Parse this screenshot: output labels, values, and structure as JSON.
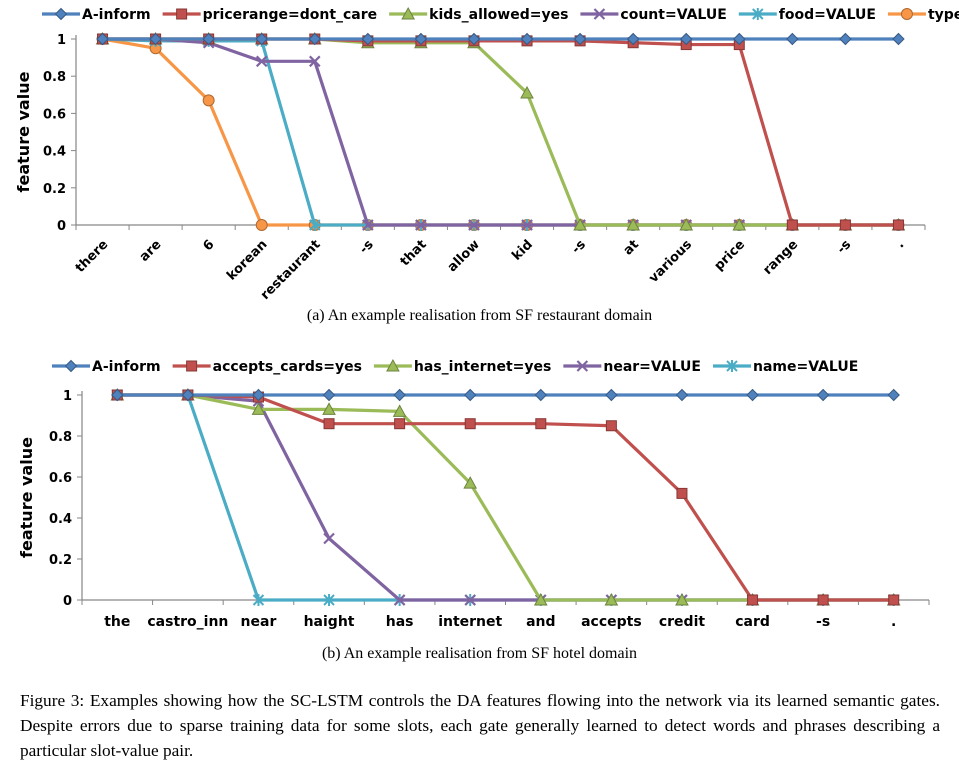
{
  "chart_data": [
    {
      "type": "line",
      "ylabel": "feature value",
      "xlabel": "",
      "ylim": [
        0,
        1
      ],
      "yticks": [
        "0",
        "0.2",
        "0.4",
        "0.6",
        "0.8",
        "1"
      ],
      "categories": [
        "there",
        "are",
        "6",
        "korean",
        "restaurant",
        "-s",
        "that",
        "allow",
        "kid",
        "-s",
        "at",
        "various",
        "price",
        "range",
        "-s",
        "."
      ],
      "legend_position": "top",
      "x_tick_rotation": "rotated",
      "series": [
        {
          "name": "A-inform",
          "color": "#4f81bd",
          "marker": "diamond",
          "values": [
            1,
            1,
            1,
            1,
            1,
            1,
            1,
            1,
            1,
            1,
            1,
            1,
            1,
            1,
            1,
            1
          ]
        },
        {
          "name": "pricerange=dont_care",
          "color": "#c0504d",
          "marker": "square",
          "values": [
            1,
            1,
            1,
            1,
            1,
            0.99,
            0.99,
            0.99,
            0.99,
            0.99,
            0.98,
            0.97,
            0.97,
            0,
            0,
            0
          ]
        },
        {
          "name": "kids_allowed=yes",
          "color": "#9bbb59",
          "marker": "triangle",
          "values": [
            1,
            1,
            1,
            1,
            1,
            0.98,
            0.98,
            0.98,
            0.71,
            0,
            0,
            0,
            0,
            0,
            0,
            0
          ]
        },
        {
          "name": "count=VALUE",
          "color": "#8064a2",
          "marker": "x",
          "values": [
            1,
            1,
            0.98,
            0.88,
            0.88,
            0,
            0,
            0,
            0,
            0,
            0,
            0,
            0,
            0,
            0,
            0
          ]
        },
        {
          "name": "food=VALUE",
          "color": "#4bacc6",
          "marker": "star",
          "values": [
            1,
            0.99,
            0.99,
            0.99,
            0,
            0,
            0,
            0,
            0,
            0,
            0,
            0,
            0,
            0,
            0,
            0
          ]
        },
        {
          "name": "type=VALUE",
          "color": "#f79646",
          "marker": "circle",
          "values": [
            1,
            0.95,
            0.67,
            0,
            0,
            0,
            0,
            0,
            0,
            0,
            0,
            0,
            0,
            0,
            0,
            0
          ]
        }
      ],
      "caption": "(a) An example realisation from SF restaurant domain"
    },
    {
      "type": "line",
      "ylabel": "feature value",
      "xlabel": "",
      "ylim": [
        0,
        1
      ],
      "yticks": [
        "0",
        "0.2",
        "0.4",
        "0.6",
        "0.8",
        "1"
      ],
      "categories": [
        "the",
        "castro_inn",
        "near",
        "haight",
        "has",
        "internet",
        "and",
        "accepts",
        "credit",
        "card",
        "-s",
        "."
      ],
      "legend_position": "top",
      "x_tick_rotation": "none",
      "series": [
        {
          "name": "A-inform",
          "color": "#4f81bd",
          "marker": "diamond",
          "values": [
            1,
            1,
            1,
            1,
            1,
            1,
            1,
            1,
            1,
            1,
            1,
            1
          ]
        },
        {
          "name": "accepts_cards=yes",
          "color": "#c0504d",
          "marker": "square",
          "values": [
            1,
            1,
            0.99,
            0.86,
            0.86,
            0.86,
            0.86,
            0.85,
            0.52,
            0,
            0,
            0
          ]
        },
        {
          "name": "has_internet=yes",
          "color": "#9bbb59",
          "marker": "triangle",
          "values": [
            1,
            1,
            0.93,
            0.93,
            0.92,
            0.57,
            0,
            0,
            0,
            0,
            0,
            0
          ]
        },
        {
          "name": "near=VALUE",
          "color": "#8064a2",
          "marker": "x",
          "values": [
            1,
            1,
            0.97,
            0.3,
            0,
            0,
            0,
            0,
            0,
            0,
            0,
            0
          ]
        },
        {
          "name": "name=VALUE",
          "color": "#4bacc6",
          "marker": "star",
          "values": [
            1,
            1,
            0,
            0,
            0,
            0,
            0,
            0,
            0,
            0,
            0,
            0
          ]
        }
      ],
      "caption": "(b) An example realisation from SF hotel domain"
    }
  ],
  "figure_caption": "Figure 3: Examples showing how the SC-LSTM controls the DA features flowing into the network via its learned semantic gates. Despite errors due to sparse training data for some slots, each gate generally learned to detect words and phrases describing a particular slot-value pair."
}
